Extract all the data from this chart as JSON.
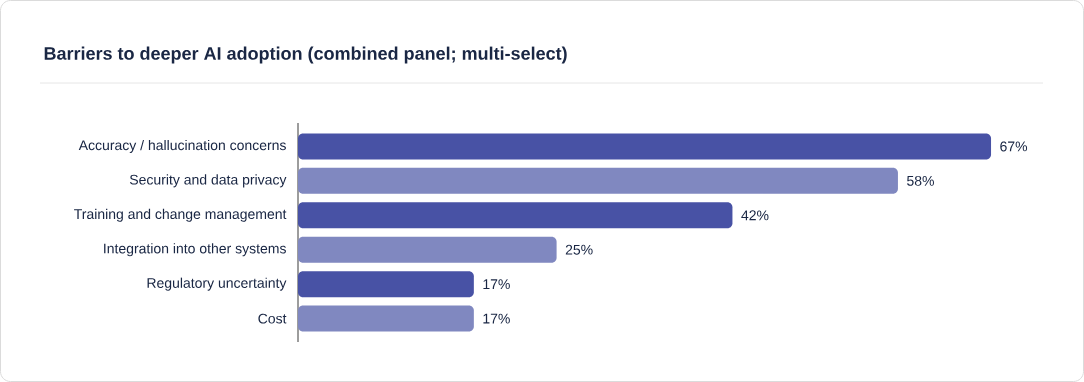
{
  "chart_data": {
    "type": "bar",
    "orientation": "horizontal",
    "title": "Barriers to deeper AI adoption (combined panel; multi-select)",
    "categories": [
      "Accuracy / hallucination concerns",
      "Security and data privacy",
      "Training and change management",
      "Integration into other systems",
      "Regulatory uncertainty",
      "Cost"
    ],
    "values": [
      67,
      58,
      42,
      25,
      17,
      17
    ],
    "value_labels": [
      "67%",
      "58%",
      "42%",
      "25%",
      "17%",
      "17%"
    ],
    "colors": [
      "#4852a5",
      "#8088c0",
      "#4852a5",
      "#8088c0",
      "#4852a5",
      "#8088c0"
    ]
  }
}
